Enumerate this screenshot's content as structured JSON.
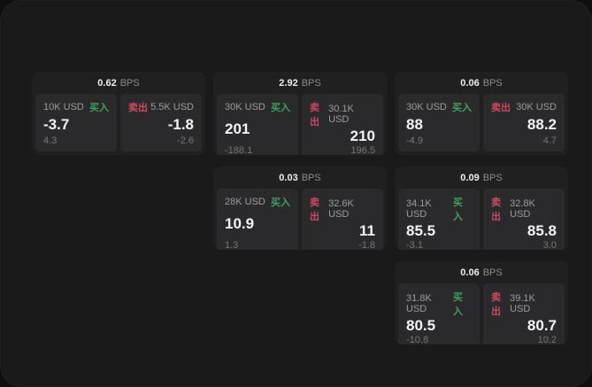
{
  "labels": {
    "buy": "买入",
    "sell": "卖出",
    "bps_unit": "BPS"
  },
  "colors": {
    "buy_green": "#42a05c",
    "sell_red": "#cb4a5e",
    "panel_bg": "#1a1a1b",
    "card_bg": "#202021",
    "tile_bg": "#2a2a2c"
  },
  "cards": [
    {
      "bps": "0.62",
      "buy": {
        "amount": "10K USD",
        "price": "-3.7",
        "delta": "4.3"
      },
      "sell": {
        "amount": "5.5K USD",
        "price": "-1.8",
        "delta": "-2.6"
      }
    },
    {
      "bps": "2.92",
      "buy": {
        "amount": "30K USD",
        "price": "201",
        "delta": "-188.1"
      },
      "sell": {
        "amount": "30.1K USD",
        "price": "210",
        "delta": "196.5"
      }
    },
    {
      "bps": "0.06",
      "buy": {
        "amount": "30K USD",
        "price": "88",
        "delta": "-4.9"
      },
      "sell": {
        "amount": "30K USD",
        "price": "88.2",
        "delta": "4.7"
      }
    },
    {
      "bps": "0.03",
      "buy": {
        "amount": "28K USD",
        "price": "10.9",
        "delta": "1.3"
      },
      "sell": {
        "amount": "32.6K USD",
        "price": "11",
        "delta": "-1.8"
      }
    },
    {
      "bps": "0.09",
      "buy": {
        "amount": "34.1K USD",
        "price": "85.5",
        "delta": "-3.1"
      },
      "sell": {
        "amount": "32.8K USD",
        "price": "85.8",
        "delta": "3.0"
      }
    },
    {
      "bps": "0.06",
      "buy": {
        "amount": "31.8K USD",
        "price": "80.5",
        "delta": "-10.8"
      },
      "sell": {
        "amount": "39.1K USD",
        "price": "80.7",
        "delta": "10.2"
      }
    }
  ]
}
